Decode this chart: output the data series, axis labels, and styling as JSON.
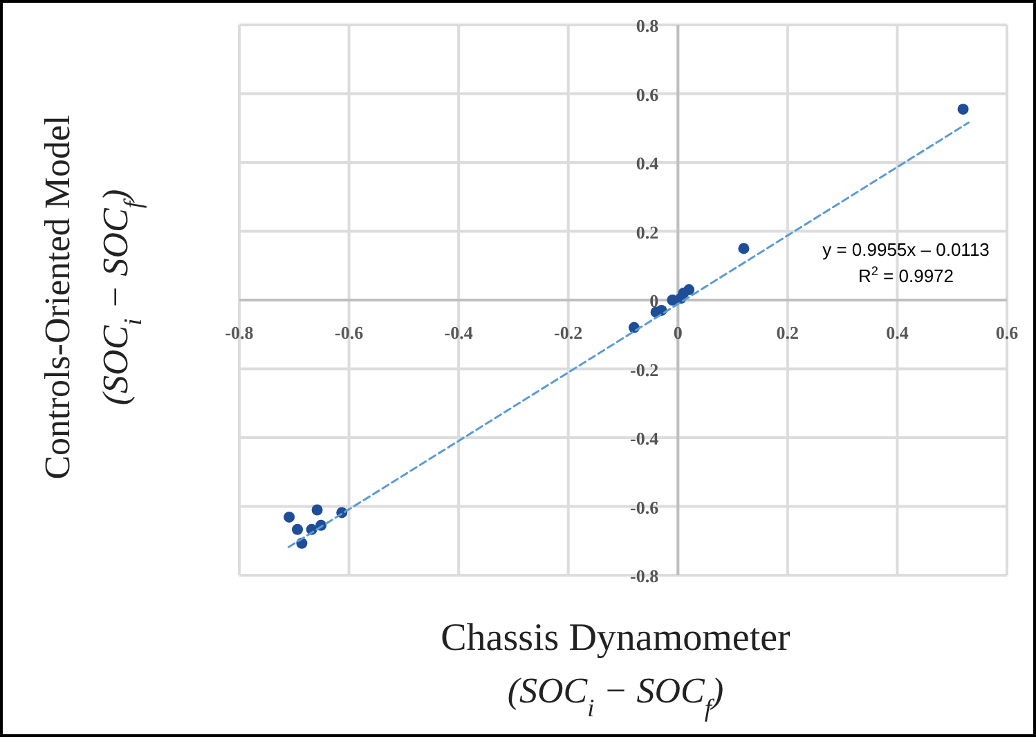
{
  "chart_data": {
    "type": "scatter",
    "xlabel": "Chassis Dynamometer\n(SOC$_{i}$ − SOC$_{f}$)",
    "ylabel": "Controls-Oriented Model\n(SOC$_{i}$ − SOC$_{f}$)",
    "xlim": [
      -0.8,
      0.6
    ],
    "ylim": [
      -0.8,
      0.8
    ],
    "xticks": [
      -0.8,
      -0.6,
      -0.4,
      -0.2,
      0,
      0.2,
      0.4,
      0.6
    ],
    "yticks": [
      -0.8,
      -0.6,
      -0.4,
      -0.2,
      0,
      0.2,
      0.4,
      0.6,
      0.8
    ],
    "grid": true,
    "marker": "circle",
    "annotations": [
      "y = 0.9955x – 0.0113\nR$^{2}$ = 0.9972"
    ],
    "series": [
      {
        "color": "#1f4e99",
        "x": [
          0.52,
          0.12,
          0.02,
          0.01,
          -0.01,
          0.005,
          -0.03,
          -0.04,
          -0.08,
          -0.613,
          -0.709,
          -0.658,
          -0.686,
          -0.694,
          -0.668,
          -0.651
        ],
        "values": [
          0.555,
          0.15,
          0.03,
          0.02,
          0,
          0.005,
          -0.03,
          -0.035,
          -0.08,
          -0.618,
          -0.631,
          -0.61,
          -0.707,
          -0.667,
          -0.667,
          -0.655
        ]
      },
      {
        "type": "line",
        "color": "#5b9bd5",
        "line_style": "dashed",
        "marker": "none",
        "x": [
          -0.71,
          0.53
        ],
        "values": [
          -0.718,
          0.516
        ]
      }
    ]
  }
}
